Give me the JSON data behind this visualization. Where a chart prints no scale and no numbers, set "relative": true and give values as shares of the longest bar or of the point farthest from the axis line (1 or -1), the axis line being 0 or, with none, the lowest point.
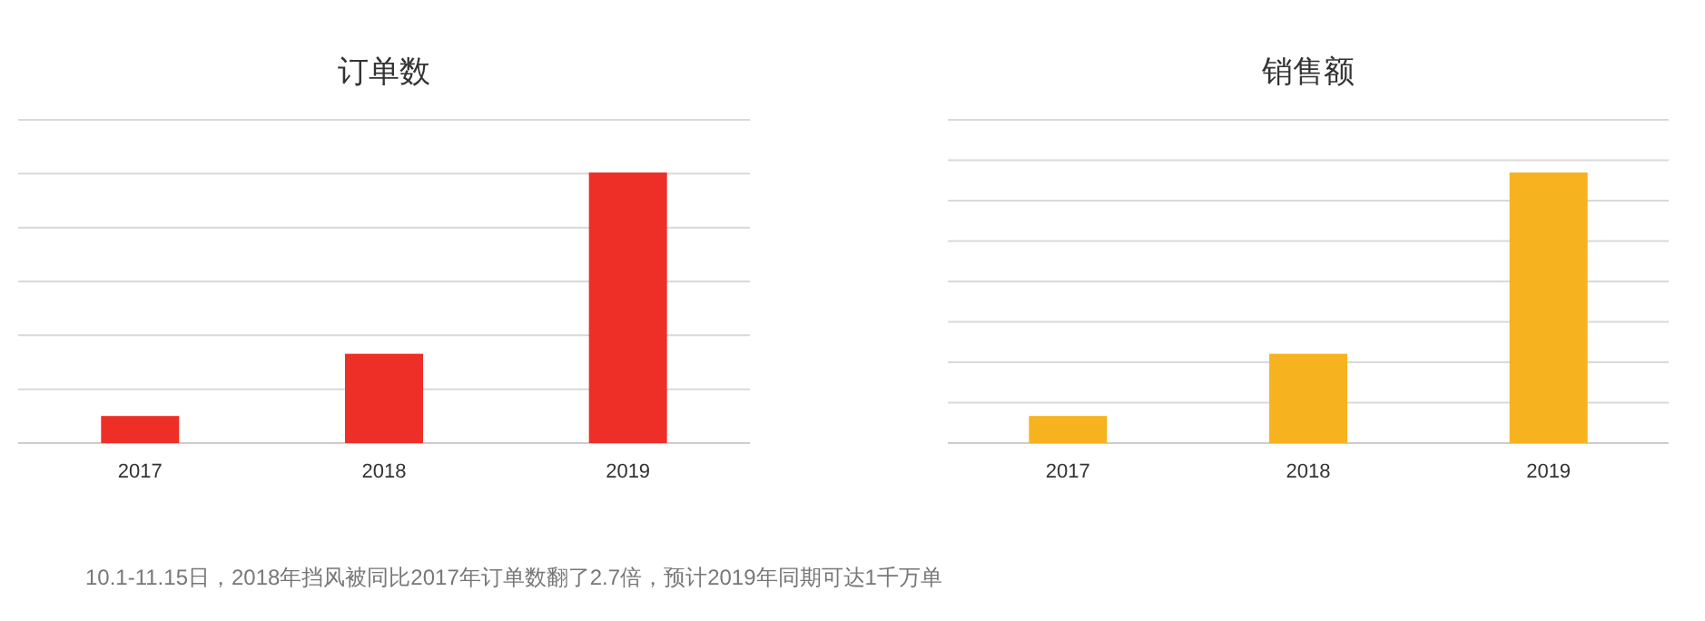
{
  "chart_data": [
    {
      "type": "bar",
      "title": "订单数",
      "categories": [
        "2017",
        "2018",
        "2019"
      ],
      "relative": true,
      "grid": true,
      "series": [
        {
          "color": "#ee2f27",
          "values": [
            0.1,
            0.33,
            1
          ]
        }
      ],
      "annotations": [
        "10.1-11.15日，2018年挡风被同比2017年订单数翻了2.7倍，预计2019年同期可达1千万单"
      ]
    },
    {
      "type": "bar",
      "title": "销售额",
      "categories": [
        "2017",
        "2018",
        "2019"
      ],
      "relative": true,
      "grid": true,
      "series": [
        {
          "color": "#f6b31f",
          "values": [
            0.1,
            0.33,
            1
          ]
        }
      ]
    }
  ]
}
